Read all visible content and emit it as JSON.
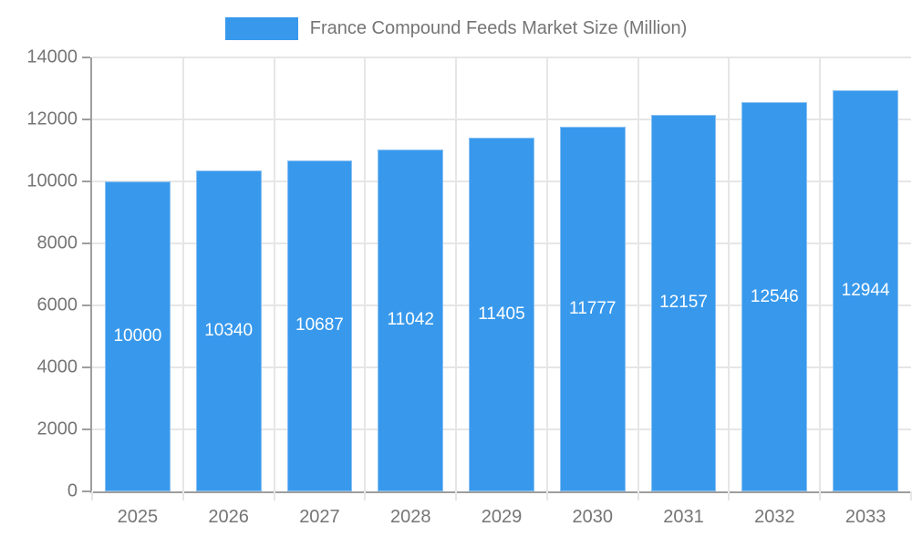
{
  "chart_data": {
    "type": "bar",
    "title": "France Compound Feeds Market Size (Million)",
    "legend": {
      "position": "top",
      "entries": [
        "France Compound Feeds Market Size (Million)"
      ]
    },
    "categories": [
      "2025",
      "2026",
      "2027",
      "2028",
      "2029",
      "2030",
      "2031",
      "2032",
      "2033"
    ],
    "series": [
      {
        "name": "France Compound Feeds Market Size (Million)",
        "values": [
          10000,
          10340,
          10687,
          11042,
          11405,
          11777,
          12157,
          12546,
          12944
        ]
      }
    ],
    "bar_value_labels": [
      "10000",
      "10340",
      "10687",
      "11042",
      "11405",
      "11777",
      "12157",
      "12546",
      "12944"
    ],
    "xlabel": "",
    "ylabel": "",
    "ylim": [
      0,
      14000
    ],
    "yticks": [
      0,
      2000,
      4000,
      6000,
      8000,
      10000,
      12000,
      14000
    ],
    "ytick_labels": [
      "0",
      "2000",
      "4000",
      "6000",
      "8000",
      "10000",
      "12000",
      "14000"
    ],
    "grid": true,
    "colors": {
      "bar": "#3899EC",
      "bar_edge": "#8BC1F2",
      "grid_line": "#e6e6e6",
      "axis_line": "#9e9e9e",
      "tick_mark": "#9e9e9e",
      "axis_text": "#757575",
      "value_label_text": "#ffffff",
      "background": "#ffffff"
    }
  }
}
